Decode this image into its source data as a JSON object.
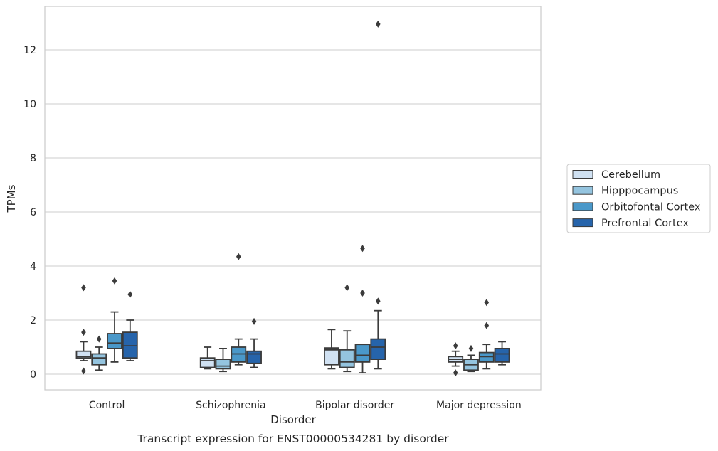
{
  "chart_data": {
    "type": "box",
    "caption": "Transcript expression for ENST00000534281 by disorder",
    "xlabel": "Disorder",
    "ylabel": "TPMs",
    "ylim": [
      -0.55,
      13.6
    ],
    "yticks": [
      0,
      2,
      4,
      6,
      8,
      10,
      12
    ],
    "grid": "horizontal",
    "legend_position": "right",
    "categories": [
      "Control",
      "Schizophrenia",
      "Bipolar disorder",
      "Major depression"
    ],
    "series": [
      {
        "name": "Cerebellum",
        "color": "#d0e1f2",
        "boxes": [
          {
            "whisker_low": 0.5,
            "q1": 0.6,
            "median": 0.65,
            "q3": 0.85,
            "whisker_high": 1.2,
            "outliers": [
              3.2,
              1.55,
              0.12
            ]
          },
          {
            "whisker_low": 0.2,
            "q1": 0.25,
            "median": 0.5,
            "q3": 0.6,
            "whisker_high": 1.0,
            "outliers": []
          },
          {
            "whisker_low": 0.2,
            "q1": 0.35,
            "median": 0.9,
            "q3": 0.97,
            "whisker_high": 1.65,
            "outliers": []
          },
          {
            "whisker_low": 0.3,
            "q1": 0.45,
            "median": 0.55,
            "q3": 0.65,
            "whisker_high": 0.85,
            "outliers": [
              1.05,
              0.05
            ]
          }
        ]
      },
      {
        "name": "Hipppocampus",
        "color": "#94c4df",
        "boxes": [
          {
            "whisker_low": 0.15,
            "q1": 0.35,
            "median": 0.6,
            "q3": 0.75,
            "whisker_high": 1.0,
            "outliers": [
              1.3
            ]
          },
          {
            "whisker_low": 0.1,
            "q1": 0.2,
            "median": 0.3,
            "q3": 0.55,
            "whisker_high": 0.95,
            "outliers": []
          },
          {
            "whisker_low": 0.1,
            "q1": 0.25,
            "median": 0.45,
            "q3": 0.9,
            "whisker_high": 1.6,
            "outliers": [
              3.2
            ]
          },
          {
            "whisker_low": 0.1,
            "q1": 0.15,
            "median": 0.35,
            "q3": 0.55,
            "whisker_high": 0.7,
            "outliers": [
              0.95
            ]
          }
        ]
      },
      {
        "name": "Orbitofontal Cortex",
        "color": "#4a98c9",
        "boxes": [
          {
            "whisker_low": 0.45,
            "q1": 0.95,
            "median": 1.15,
            "q3": 1.5,
            "whisker_high": 2.3,
            "outliers": [
              3.45
            ]
          },
          {
            "whisker_low": 0.35,
            "q1": 0.45,
            "median": 0.75,
            "q3": 1.0,
            "whisker_high": 1.3,
            "outliers": [
              4.35
            ]
          },
          {
            "whisker_low": 0.05,
            "q1": 0.45,
            "median": 0.7,
            "q3": 1.1,
            "whisker_high": 1.1,
            "outliers": [
              4.65,
              3.0
            ]
          },
          {
            "whisker_low": 0.2,
            "q1": 0.45,
            "median": 0.65,
            "q3": 0.8,
            "whisker_high": 1.1,
            "outliers": [
              2.65,
              1.8
            ]
          }
        ]
      },
      {
        "name": "Prefrontal Cortex",
        "color": "#2664ab",
        "boxes": [
          {
            "whisker_low": 0.5,
            "q1": 0.6,
            "median": 1.05,
            "q3": 1.55,
            "whisker_high": 2.0,
            "outliers": [
              2.95
            ]
          },
          {
            "whisker_low": 0.25,
            "q1": 0.4,
            "median": 0.75,
            "q3": 0.85,
            "whisker_high": 1.3,
            "outliers": [
              1.95
            ]
          },
          {
            "whisker_low": 0.2,
            "q1": 0.55,
            "median": 1.0,
            "q3": 1.3,
            "whisker_high": 2.35,
            "outliers": [
              12.95,
              2.7
            ]
          },
          {
            "whisker_low": 0.35,
            "q1": 0.45,
            "median": 0.75,
            "q3": 0.95,
            "whisker_high": 1.2,
            "outliers": []
          }
        ]
      }
    ]
  }
}
